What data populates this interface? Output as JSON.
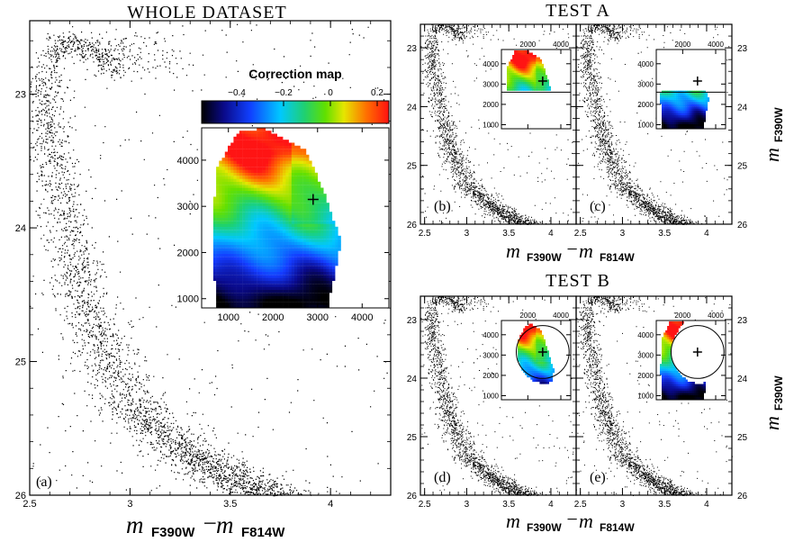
{
  "figure": {
    "titles": {
      "whole": "WHOLE DATASET",
      "test_a": "TEST A",
      "test_b": "TEST B"
    },
    "axis_text": {
      "m": "m",
      "f390": "F390W",
      "f814": "F814W",
      "minus": "−"
    },
    "colorbar": {
      "title": "Correction map"
    },
    "marker": "+"
  },
  "chart_data": [
    {
      "id": "a",
      "type": "scatter",
      "panel_label": "(a)",
      "title": "WHOLE DATASET",
      "xlabel": "m F390W − m F814W",
      "ylabel": "",
      "xlim": [
        2.5,
        4.3
      ],
      "ylim": [
        26.0,
        22.45
      ],
      "y_inverted": true,
      "xticks": [
        2.5,
        3,
        3.5,
        4
      ],
      "xtick_labels": [
        "2.5",
        "3",
        "3.5",
        "4"
      ],
      "yticks": [
        23,
        24,
        25,
        26
      ],
      "ytick_labels": [
        "23",
        "24",
        "25",
        "26"
      ],
      "ridge": [
        {
          "x": 2.95,
          "y": 22.85
        },
        {
          "x": 2.82,
          "y": 22.68
        },
        {
          "x": 2.68,
          "y": 22.58
        },
        {
          "x": 2.6,
          "y": 22.72
        },
        {
          "x": 2.58,
          "y": 22.95
        },
        {
          "x": 2.6,
          "y": 23.3
        },
        {
          "x": 2.65,
          "y": 23.8
        },
        {
          "x": 2.72,
          "y": 24.3
        },
        {
          "x": 2.83,
          "y": 24.8
        },
        {
          "x": 3.0,
          "y": 25.3
        },
        {
          "x": 3.25,
          "y": 25.65
        },
        {
          "x": 3.55,
          "y": 25.9
        },
        {
          "x": 3.72,
          "y": 26.0
        }
      ],
      "inset": {
        "type": "heatmap",
        "value_range": [
          -0.55,
          0.25
        ],
        "xlim": [
          400,
          4600
        ],
        "ylim": [
          800,
          4700
        ],
        "xticks": [
          1000,
          2000,
          3000,
          4000
        ],
        "yticks": [
          1000,
          2000,
          3000,
          4000
        ],
        "tick_labels_x": [
          "1000",
          "2000",
          "3000",
          "4000"
        ],
        "tick_labels_y": [
          "1000",
          "2000",
          "3000",
          "4000"
        ],
        "marker": [
          2900,
          3150
        ],
        "colorbar_ticks": [
          -0.4,
          -0.2,
          0,
          0.2
        ],
        "colorbar_tick_labels": [
          "−0.4",
          "−0.2",
          "0",
          "0.2"
        ],
        "footprint": [
          [
            1200,
            4600
          ],
          [
            1800,
            4650
          ],
          [
            2700,
            4200
          ],
          [
            3100,
            3300
          ],
          [
            3500,
            2200
          ],
          [
            3200,
            800
          ],
          [
            700,
            800
          ],
          [
            600,
            2200
          ],
          [
            700,
            3800
          ]
        ]
      }
    },
    {
      "id": "b",
      "type": "scatter",
      "panel_label": "(b)",
      "group": "TEST A",
      "xlim": [
        2.45,
        4.3
      ],
      "ylim": [
        26.0,
        22.6
      ],
      "xticks": [
        2.5,
        3,
        3.5,
        4
      ],
      "xtick_labels": [
        "2.5",
        "3",
        "3.5",
        "4"
      ],
      "yticks": [
        23,
        24,
        25,
        26
      ],
      "ytick_labels": [
        "23",
        "24",
        "25",
        "26"
      ],
      "inset": {
        "mask": "y_above",
        "cut": 2600,
        "marker": [
          2900,
          3150
        ],
        "xticks": [
          2000,
          4000
        ],
        "tick_labels_x": [
          "2000",
          "4000"
        ],
        "yticks": [
          1000,
          2000,
          3000,
          4000
        ],
        "tick_labels_y": [
          "1000",
          "2000",
          "3000",
          "4000"
        ]
      }
    },
    {
      "id": "c",
      "type": "scatter",
      "panel_label": "(c)",
      "group": "TEST A",
      "xlim": [
        2.45,
        4.3
      ],
      "ylim": [
        26.0,
        22.6
      ],
      "xticks": [
        2.5,
        3,
        3.5,
        4
      ],
      "xtick_labels": [
        "2.5",
        "3",
        "3.5",
        "4"
      ],
      "yticks": [
        23,
        24,
        25,
        26
      ],
      "ytick_labels": [
        "23",
        "24",
        "25",
        "26"
      ],
      "inset": {
        "mask": "y_below",
        "cut": 2600,
        "marker": [
          2900,
          3150
        ],
        "xticks": [
          2000,
          4000
        ],
        "tick_labels_x": [
          "2000",
          "4000"
        ],
        "yticks": [
          1000,
          2000,
          3000,
          4000
        ],
        "tick_labels_y": [
          "1000",
          "2000",
          "3000",
          "4000"
        ]
      }
    },
    {
      "id": "d",
      "type": "scatter",
      "panel_label": "(d)",
      "group": "TEST B",
      "xlim": [
        2.45,
        4.3
      ],
      "ylim": [
        26.0,
        22.6
      ],
      "xticks": [
        2.5,
        3,
        3.5,
        4
      ],
      "xtick_labels": [
        "2.5",
        "3",
        "3.5",
        "4"
      ],
      "yticks": [
        23,
        24,
        25,
        26
      ],
      "ytick_labels": [
        "23",
        "24",
        "25",
        "26"
      ],
      "inset": {
        "mask": "circle_inside",
        "center": [
          2900,
          3150
        ],
        "radius": 1600,
        "marker": [
          2900,
          3150
        ],
        "xticks": [
          2000,
          4000
        ],
        "tick_labels_x": [
          "2000",
          "4000"
        ],
        "yticks": [
          1000,
          2000,
          3000,
          4000
        ],
        "tick_labels_y": [
          "1000",
          "2000",
          "3000",
          "4000"
        ]
      }
    },
    {
      "id": "e",
      "type": "scatter",
      "panel_label": "(e)",
      "group": "TEST B",
      "xlim": [
        2.45,
        4.3
      ],
      "ylim": [
        26.0,
        22.6
      ],
      "xticks": [
        2.5,
        3,
        3.5,
        4
      ],
      "xtick_labels": [
        "2.5",
        "3",
        "3.5",
        "4"
      ],
      "yticks": [
        23,
        24,
        25,
        26
      ],
      "ytick_labels": [
        "23",
        "24",
        "25",
        "26"
      ],
      "inset": {
        "mask": "circle_outside",
        "center": [
          2900,
          3150
        ],
        "radius": 1600,
        "marker": [
          2900,
          3150
        ],
        "xticks": [
          2000,
          4000
        ],
        "tick_labels_x": [
          "2000",
          "4000"
        ],
        "yticks": [
          1000,
          2000,
          3000,
          4000
        ],
        "tick_labels_y": [
          "1000",
          "2000",
          "3000",
          "4000"
        ]
      }
    }
  ]
}
